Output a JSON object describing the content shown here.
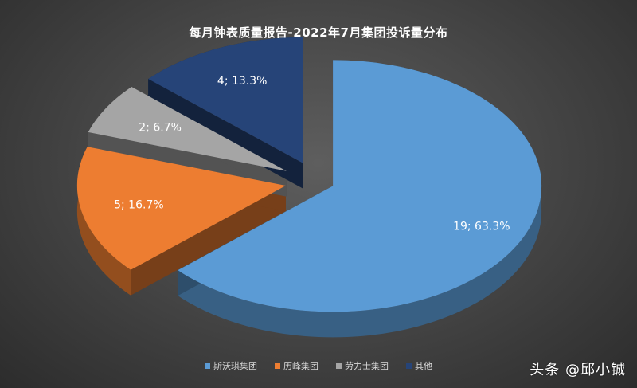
{
  "chart_data": {
    "type": "pie",
    "title": "每月钟表质量报告-2022年7月集团投诉量分布",
    "slices": [
      {
        "name": "斯沃琪集团",
        "value": 19,
        "label": "19; 63.3%",
        "color": "#5b9bd5"
      },
      {
        "name": "历峰集团",
        "value": 5,
        "label": "5; 16.7%",
        "color": "#ed7d31"
      },
      {
        "name": "劳力士集团",
        "value": 2,
        "label": "2; 6.7%",
        "color": "#a5a5a5"
      },
      {
        "name": "其他",
        "value": 4,
        "label": "4; 13.3%",
        "color": "#264478"
      }
    ],
    "legend_position": "bottom"
  },
  "watermark": "头条 @邱小铖"
}
